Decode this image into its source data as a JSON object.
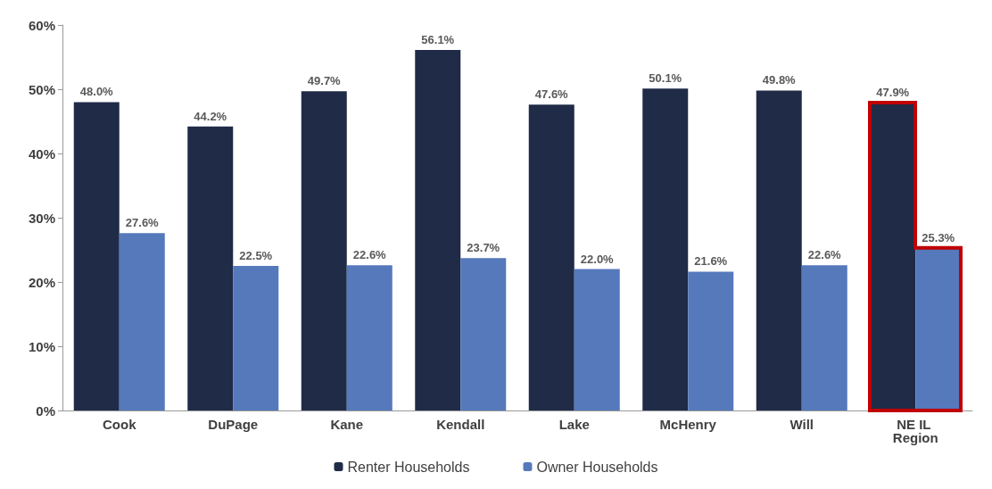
{
  "chart_data": {
    "type": "bar",
    "categories": [
      "Cook",
      "DuPage",
      "Kane",
      "Kendall",
      "Lake",
      "McHenry",
      "Will",
      "NE IL Region"
    ],
    "series": [
      {
        "name": "Renter Households",
        "color": "#1f2b47",
        "values": [
          48.0,
          44.2,
          49.7,
          56.1,
          47.6,
          50.1,
          49.8,
          47.9
        ],
        "value_labels": [
          "48.0%",
          "44.2%",
          "49.7%",
          "56.1%",
          "47.6%",
          "50.1%",
          "49.8%",
          "47.9%"
        ]
      },
      {
        "name": "Owner Households",
        "color": "#5579bb",
        "values": [
          27.6,
          22.5,
          22.6,
          23.7,
          22.0,
          21.6,
          22.6,
          25.3
        ],
        "value_labels": [
          "27.6%",
          "22.5%",
          "22.6%",
          "23.7%",
          "22.0%",
          "21.6%",
          "22.6%",
          "25.3%"
        ]
      }
    ],
    "ylim": [
      0,
      60
    ],
    "yticks": [
      {
        "value": 0,
        "label": "0%"
      },
      {
        "value": 10,
        "label": "10%"
      },
      {
        "value": 20,
        "label": "20%"
      },
      {
        "value": 30,
        "label": "30%"
      },
      {
        "value": 40,
        "label": "40%"
      },
      {
        "value": 50,
        "label": "50%"
      },
      {
        "value": 60,
        "label": "60%"
      }
    ],
    "grid": false,
    "legend": "bottom"
  }
}
